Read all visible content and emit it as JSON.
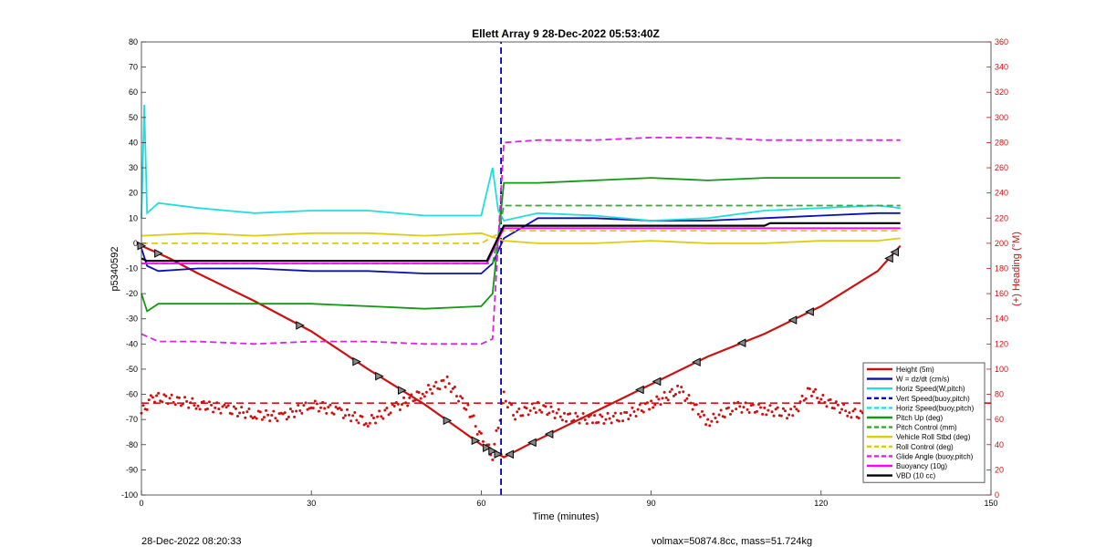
{
  "chart_data": {
    "type": "line",
    "title": "Ellett Array 9 28-Dec-2022 05:53:40Z",
    "xlabel": "Time (minutes)",
    "ylabel_left": "p5340592",
    "ylabel_right": "(+) Heading (°M)",
    "xlim": [
      0,
      150
    ],
    "ylim_left": [
      -100,
      80
    ],
    "ylim_right": [
      0,
      360
    ],
    "x_ticks": [
      "0",
      "30",
      "60",
      "90",
      "120",
      "150"
    ],
    "y_ticks_left": [
      "80",
      "70",
      "60",
      "50",
      "40",
      "30",
      "20",
      "10",
      "0",
      "-10",
      "-20",
      "-30",
      "-40",
      "-50",
      "-60",
      "-70",
      "-80",
      "-90",
      "-100"
    ],
    "y_ticks_right": [
      "360",
      "340",
      "320",
      "300",
      "280",
      "260",
      "240",
      "220",
      "200",
      "180",
      "160",
      "140",
      "120",
      "100",
      "80",
      "60",
      "40",
      "20",
      "0"
    ],
    "grid": false,
    "legend_position": "bottom-right",
    "vertical_marker_x": 63.5,
    "series": [
      {
        "name": "Height (5m)",
        "color": "#cc1111",
        "style": "solid",
        "x": [
          0,
          5,
          10,
          20,
          30,
          40,
          50,
          60,
          64,
          70,
          80,
          90,
          100,
          110,
          120,
          130,
          134
        ],
        "y": [
          -1,
          -6,
          -12,
          -23,
          -35,
          -50,
          -64,
          -80,
          -85,
          -78,
          -67,
          -56,
          -45,
          -36,
          -25,
          -11,
          -1
        ]
      },
      {
        "name": "W = dz/dt (cm/s)",
        "color": "#0a10b0",
        "style": "solid",
        "x": [
          0,
          1,
          3,
          10,
          20,
          30,
          40,
          50,
          60,
          62,
          64,
          70,
          80,
          90,
          100,
          110,
          120,
          130,
          134
        ],
        "y": [
          -2,
          -9,
          -11,
          -10,
          -10,
          -11,
          -11,
          -12,
          -12,
          -8,
          2,
          10,
          10,
          9,
          9,
          10,
          11,
          12,
          12
        ]
      },
      {
        "name": "Horiz Speed(W,pitch)",
        "color": "#22dddd",
        "style": "solid",
        "x": [
          0,
          0.5,
          1,
          3,
          10,
          20,
          30,
          40,
          50,
          60,
          62,
          63,
          64,
          70,
          80,
          90,
          100,
          110,
          120,
          130,
          134
        ],
        "y": [
          10,
          55,
          12,
          16,
          14,
          12,
          13,
          13,
          11,
          11,
          30,
          13,
          9,
          12,
          11,
          9,
          10,
          13,
          14,
          15,
          14
        ]
      },
      {
        "name": "Vert Speed(buoy,pitch)",
        "color": "#0000cc",
        "style": "dashed",
        "x": [
          63.5,
          63.5
        ],
        "y": [
          -100,
          80
        ]
      },
      {
        "name": "Horiz Speed(buoy,pitch)",
        "color": "#22dddd",
        "style": "dashed",
        "x": [],
        "y": []
      },
      {
        "name": "Pitch Up (deg)",
        "color": "#119911",
        "style": "solid",
        "x": [
          0,
          1,
          3,
          10,
          20,
          30,
          40,
          50,
          60,
          62,
          64,
          70,
          80,
          90,
          100,
          110,
          120,
          130,
          134
        ],
        "y": [
          -20,
          -27,
          -24,
          -24,
          -24,
          -24,
          -25,
          -26,
          -25,
          -20,
          24,
          24,
          25,
          26,
          25,
          26,
          26,
          26,
          26
        ]
      },
      {
        "name": "Pitch Control (mm)",
        "color": "#33aa33",
        "style": "dashed",
        "x": [
          0,
          62,
          64,
          134
        ],
        "y": [
          -8,
          -8,
          15,
          15
        ]
      },
      {
        "name": "Vehicle Roll Stbd (deg)",
        "color": "#ddcc11",
        "style": "solid",
        "x": [
          0,
          10,
          20,
          30,
          40,
          50,
          60,
          64,
          70,
          80,
          90,
          100,
          110,
          120,
          130,
          134
        ],
        "y": [
          3,
          4,
          3,
          4,
          4,
          3,
          4,
          1,
          0,
          0,
          1,
          0,
          0,
          1,
          1,
          2
        ]
      },
      {
        "name": "Roll Control (deg)",
        "color": "#ddcc11",
        "style": "dashed",
        "x": [
          0,
          60,
          64,
          134
        ],
        "y": [
          0,
          0,
          5,
          5
        ]
      },
      {
        "name": "Glide Angle (buoy,pitch)",
        "color": "#dd22dd",
        "style": "dashed",
        "x": [
          0,
          3,
          10,
          20,
          30,
          40,
          50,
          60,
          62,
          64,
          70,
          80,
          90,
          100,
          110,
          120,
          130,
          134
        ],
        "y": [
          -36,
          -39,
          -39,
          -40,
          -39,
          -39,
          -40,
          -40,
          -38,
          40,
          41,
          41,
          42,
          42,
          41,
          41,
          41,
          41
        ]
      },
      {
        "name": "Buoyancy (10g)",
        "color": "#ff00ff",
        "style": "solid",
        "x": [
          0,
          61,
          64,
          110,
          134
        ],
        "y": [
          -8,
          -8,
          6,
          6,
          6
        ]
      },
      {
        "name": "VBD (10 cc)",
        "color": "#000000",
        "style": "solid",
        "x": [
          0,
          1,
          61,
          64,
          110,
          111,
          134
        ],
        "y": [
          -6,
          -7,
          -7,
          7,
          7,
          8,
          8
        ]
      }
    ],
    "heading_reference": 73,
    "heading_series": {
      "name": "Heading",
      "color": "#cc1111",
      "x": [
        0,
        2,
        5,
        10,
        15,
        20,
        25,
        30,
        35,
        40,
        45,
        50,
        54,
        58,
        60,
        62,
        64,
        66,
        70,
        75,
        80,
        85,
        90,
        95,
        100,
        105,
        110,
        115,
        118,
        120,
        125,
        130,
        134
      ],
      "y": [
        65,
        78,
        76,
        72,
        68,
        64,
        62,
        72,
        66,
        58,
        70,
        82,
        90,
        66,
        45,
        32,
        78,
        64,
        70,
        62,
        60,
        62,
        72,
        84,
        58,
        70,
        68,
        64,
        84,
        76,
        66,
        60,
        64
      ]
    },
    "markers": {
      "down_x": [
        0,
        3,
        28,
        38,
        42,
        46,
        54,
        59,
        61,
        62,
        63
      ],
      "up_x": [
        65,
        69,
        72,
        88,
        91,
        98,
        106,
        115,
        118,
        132,
        133
      ]
    }
  },
  "footer": {
    "left": "28-Dec-2022 08:20:33",
    "right": "volmax=50874.8cc, mass=51.724kg"
  }
}
